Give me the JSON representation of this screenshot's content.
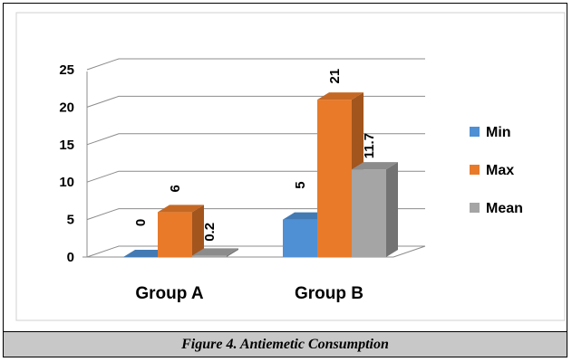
{
  "caption": "Figure 4. Antiemetic Consumption",
  "chart_data": {
    "type": "bar",
    "style": "3d-clustered-column",
    "categories": [
      "Group A",
      "Group B"
    ],
    "series": [
      {
        "name": "Min",
        "values": [
          0,
          5
        ],
        "labels": [
          "0",
          "5"
        ],
        "color": "#4f8fd3"
      },
      {
        "name": "Max",
        "values": [
          6,
          21
        ],
        "labels": [
          "6",
          "21"
        ],
        "color": "#e87a2a"
      },
      {
        "name": "Mean",
        "values": [
          0.2,
          11.7
        ],
        "labels": [
          "0.2",
          "11.7"
        ],
        "color": "#a5a5a5"
      }
    ],
    "ylim": [
      0,
      25
    ],
    "yticks": [
      "0",
      "5",
      "10",
      "15",
      "20",
      "25"
    ],
    "grid": true,
    "legend": "right"
  }
}
